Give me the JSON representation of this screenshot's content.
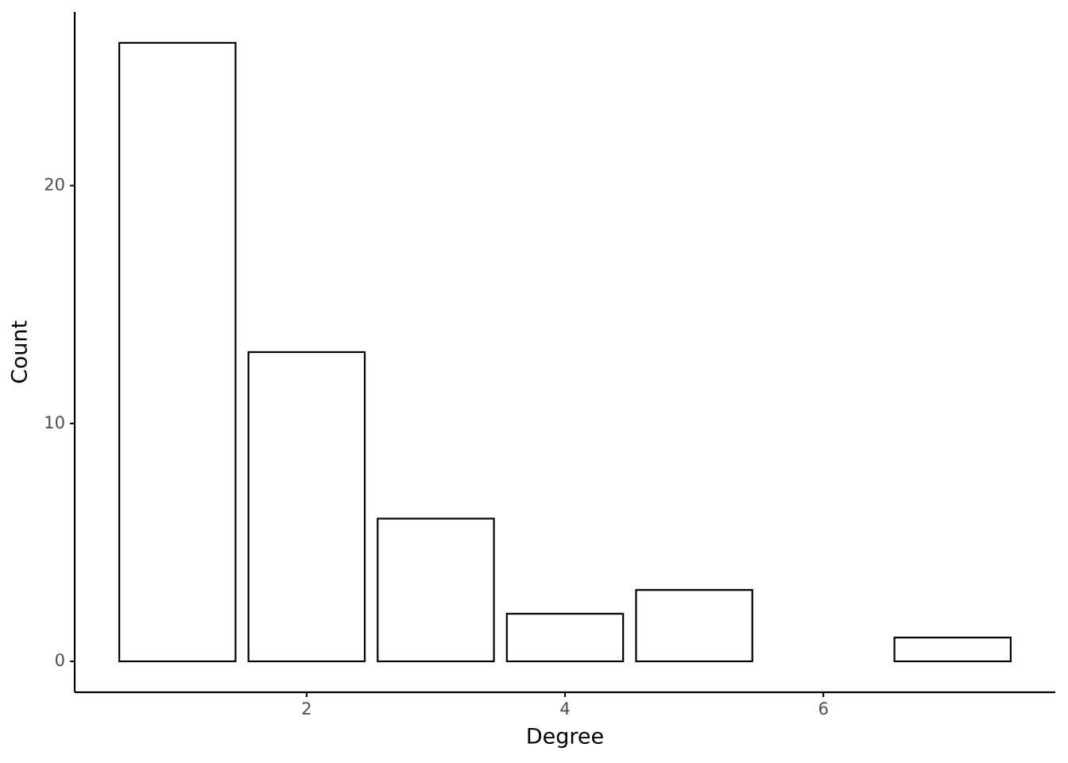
{
  "chart_data": {
    "type": "bar",
    "x_label": "Degree",
    "y_label": "Count",
    "x": [
      1,
      2,
      3,
      4,
      5,
      7
    ],
    "values": [
      26,
      13,
      6,
      2,
      3,
      1
    ],
    "color": "#000000",
    "fill": "#ffffff",
    "xlim": [
      0.205,
      7.795
    ],
    "xticks": [
      2,
      4,
      6
    ],
    "ylim": [
      -1.3,
      27.3
    ],
    "yticks": [
      0,
      10,
      20
    ],
    "grid": false
  }
}
